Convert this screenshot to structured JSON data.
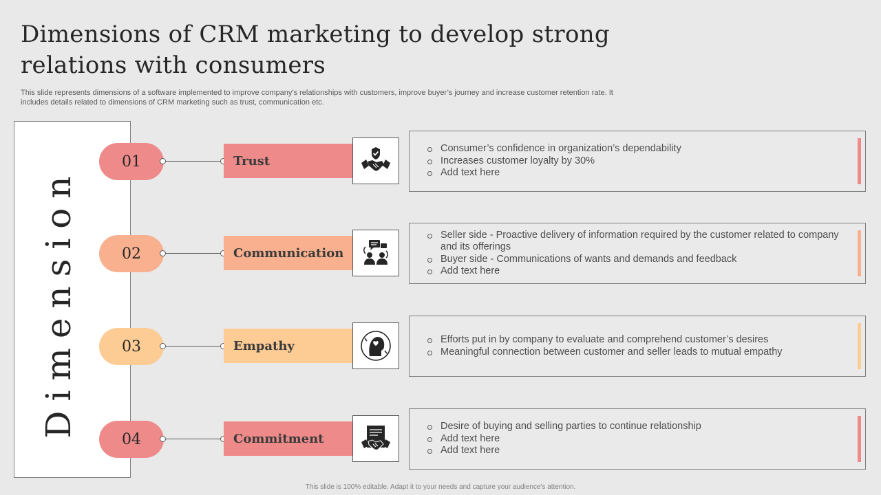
{
  "title": "Dimensions of CRM marketing to develop strong relations with consumers",
  "subtitle": "This slide represents dimensions of a software implemented to improve company’s relationships with customers, improve buyer’s journey and increase customer retention rate. It includes details related to dimensions of CRM marketing such as trust, communication etc.",
  "side_label": "Dimension",
  "colors": {
    "red": "#ee8a8a",
    "orange": "#f8b08f",
    "yellow": "#fdcb94"
  },
  "rows": [
    {
      "number": "01",
      "label": "Trust",
      "icon": "handshake-shield-icon",
      "bullets": [
        "Consumer’s confidence in organization’s dependability",
        "Increases customer loyalty by 30%",
        "Add text here"
      ]
    },
    {
      "number": "02",
      "label": "Communication",
      "icon": "people-communication-icon",
      "bullets": [
        "Seller side - Proactive delivery of information required by the customer related to company and its offerings",
        "Buyer side - Communications of wants and demands and feedback",
        "Add text here"
      ]
    },
    {
      "number": "03",
      "label": "Empathy",
      "icon": "heart-head-icon",
      "bullets": [
        "Efforts put in by company to evaluate  and comprehend customer’s desires",
        "Meaningful  connection between customer and seller leads to mutual empathy"
      ]
    },
    {
      "number": "04",
      "label": "Commitment",
      "icon": "contract-handshake-icon",
      "bullets": [
        "Desire of buying and selling parties to continue relationship",
        "Add text here",
        "Add  text here"
      ]
    }
  ],
  "footer": "This slide is 100% editable.  Adapt it to your needs and capture your audience's attention."
}
